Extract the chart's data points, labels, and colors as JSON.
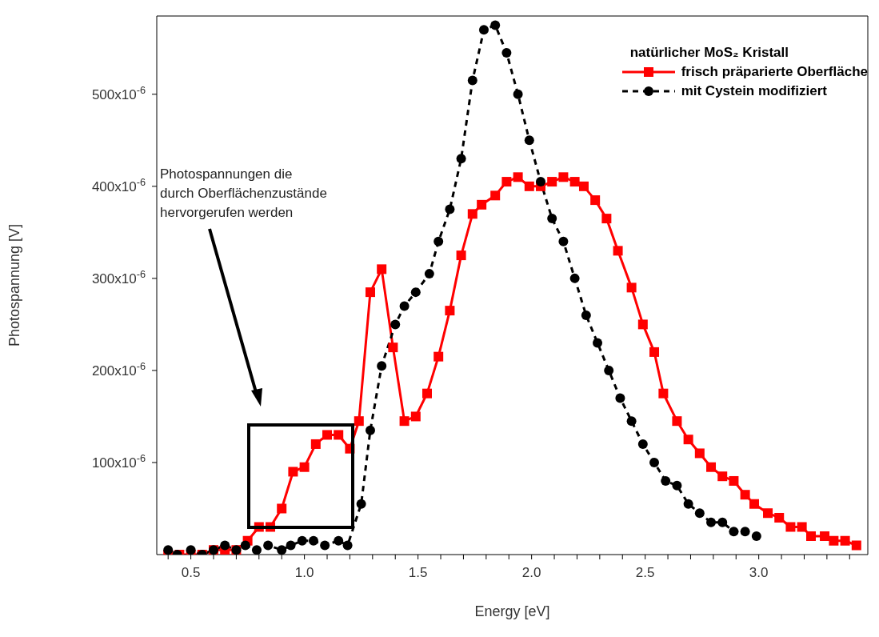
{
  "chart_data": {
    "type": "line",
    "xlabel": "Energy [eV]",
    "ylabel": "Photospannung [V]",
    "legend_title": "natürlicher MoS₂ Kristall",
    "legend": "top right",
    "xlim": [
      0.35,
      3.48
    ],
    "xticks": [
      {
        "value": 0.4,
        "label": null
      },
      0.5,
      {
        "value": 0.6,
        "label": null
      },
      {
        "value": 0.7,
        "label": null
      },
      {
        "value": 0.8,
        "label": null
      },
      {
        "value": 0.9,
        "label": null
      },
      {
        "value": 1,
        "label": "1.0"
      },
      {
        "value": 1.1,
        "label": null
      },
      {
        "value": 1.2,
        "label": null
      },
      {
        "value": 1.3,
        "label": null
      },
      {
        "value": 1.4,
        "label": null
      },
      1.5,
      {
        "value": 1.6,
        "label": null
      },
      {
        "value": 1.7,
        "label": null
      },
      {
        "value": 1.8,
        "label": null
      },
      {
        "value": 1.9,
        "label": null
      },
      {
        "value": 2,
        "label": "2.0"
      },
      {
        "value": 2.1,
        "label": null
      },
      {
        "value": 2.2,
        "label": null
      },
      {
        "value": 2.3,
        "label": null
      },
      {
        "value": 2.4,
        "label": null
      },
      2.5,
      {
        "value": 2.6,
        "label": null
      },
      {
        "value": 2.7,
        "label": null
      },
      {
        "value": 2.8,
        "label": null
      },
      {
        "value": 2.9,
        "label": null
      },
      {
        "value": 3,
        "label": "3.0"
      },
      {
        "value": 3.1,
        "label": null
      },
      {
        "value": 3.2,
        "label": null
      },
      {
        "value": 3.3,
        "label": null
      },
      {
        "value": 3.4,
        "label": null
      }
    ],
    "ylim": [
      0,
      0.000585
    ],
    "yticks": [
      {
        "value": 0.0001,
        "label": "100x10$^{-6}$"
      },
      {
        "value": 0.0002,
        "label": "200x10$^{-6}$"
      },
      {
        "value": 0.0003,
        "label": "300x10$^{-6}$"
      },
      {
        "value": 0.0004,
        "label": "400x10$^{-6}$"
      },
      {
        "value": 0.0005,
        "label": "500x10$^{-6}$"
      }
    ],
    "annotations": [
      "Photospannungen die\ndurch Oberflächenzustände\nhervorgerufen werden"
    ],
    "series": [
      {
        "name": "frisch präparierte Oberfläche",
        "color": "#ff0000",
        "marker": "square",
        "line_style": "solid",
        "x": [
          0.4,
          0.45,
          0.5,
          0.55,
          0.6,
          0.65,
          0.7,
          0.75,
          0.8,
          0.85,
          0.9,
          0.95,
          1.0,
          1.05,
          1.1,
          1.15,
          1.2,
          1.24,
          1.29,
          1.34,
          1.39,
          1.44,
          1.49,
          1.54,
          1.59,
          1.64,
          1.69,
          1.74,
          1.78,
          1.84,
          1.89,
          1.94,
          1.99,
          2.04,
          2.09,
          2.14,
          2.19,
          2.23,
          2.28,
          2.33,
          2.38,
          2.44,
          2.49,
          2.54,
          2.58,
          2.64,
          2.69,
          2.74,
          2.79,
          2.84,
          2.89,
          2.94,
          2.98,
          3.04,
          3.09,
          3.14,
          3.19,
          3.23,
          3.29,
          3.33,
          3.38,
          3.43
        ],
        "values": [
          0,
          0,
          0,
          0,
          5e-06,
          5e-06,
          5e-06,
          1.5e-05,
          3e-05,
          3e-05,
          5e-05,
          9e-05,
          9.5e-05,
          0.00012,
          0.00013,
          0.00013,
          0.000115,
          0.000145,
          0.000285,
          0.00031,
          0.000225,
          0.000145,
          0.00015,
          0.000175,
          0.000215,
          0.000265,
          0.000325,
          0.00037,
          0.00038,
          0.00039,
          0.000405,
          0.00041,
          0.0004,
          0.0004,
          0.000405,
          0.00041,
          0.000405,
          0.0004,
          0.000385,
          0.000365,
          0.00033,
          0.00029,
          0.00025,
          0.00022,
          0.000175,
          0.000145,
          0.000125,
          0.00011,
          9.5e-05,
          8.5e-05,
          8e-05,
          6.5e-05,
          5.5e-05,
          4.5e-05,
          4e-05,
          3e-05,
          3e-05,
          2e-05,
          2e-05,
          1.5e-05,
          1.5e-05,
          1e-05
        ]
      },
      {
        "name": "mit Cystein modifiziert",
        "color": "#000000",
        "marker": "circle",
        "line_style": "dashed",
        "x": [
          0.4,
          0.44,
          0.5,
          0.55,
          0.6,
          0.65,
          0.7,
          0.74,
          0.79,
          0.84,
          0.9,
          0.94,
          0.99,
          1.04,
          1.09,
          1.15,
          1.19,
          1.25,
          1.29,
          1.34,
          1.4,
          1.44,
          1.49,
          1.55,
          1.59,
          1.64,
          1.69,
          1.74,
          1.79,
          1.84,
          1.89,
          1.94,
          1.99,
          2.04,
          2.09,
          2.14,
          2.19,
          2.24,
          2.29,
          2.34,
          2.39,
          2.44,
          2.49,
          2.54,
          2.59,
          2.64,
          2.69,
          2.74,
          2.79,
          2.84,
          2.89,
          2.94,
          2.99
        ],
        "values": [
          5e-06,
          0,
          5e-06,
          0,
          5e-06,
          1e-05,
          5e-06,
          1e-05,
          5e-06,
          1e-05,
          5e-06,
          1e-05,
          1.5e-05,
          1.5e-05,
          1e-05,
          1.5e-05,
          1e-05,
          5.5e-05,
          0.000135,
          0.000205,
          0.00025,
          0.00027,
          0.000285,
          0.000305,
          0.00034,
          0.000375,
          0.00043,
          0.000515,
          0.00057,
          0.000575,
          0.000545,
          0.0005,
          0.00045,
          0.000405,
          0.000365,
          0.00034,
          0.0003,
          0.00026,
          0.00023,
          0.0002,
          0.00017,
          0.000145,
          0.00012,
          0.0001,
          8e-05,
          7.5e-05,
          5.5e-05,
          4.5e-05,
          3.5e-05,
          3.5e-05,
          2.5e-05,
          2.5e-05,
          2e-05
        ]
      }
    ]
  }
}
